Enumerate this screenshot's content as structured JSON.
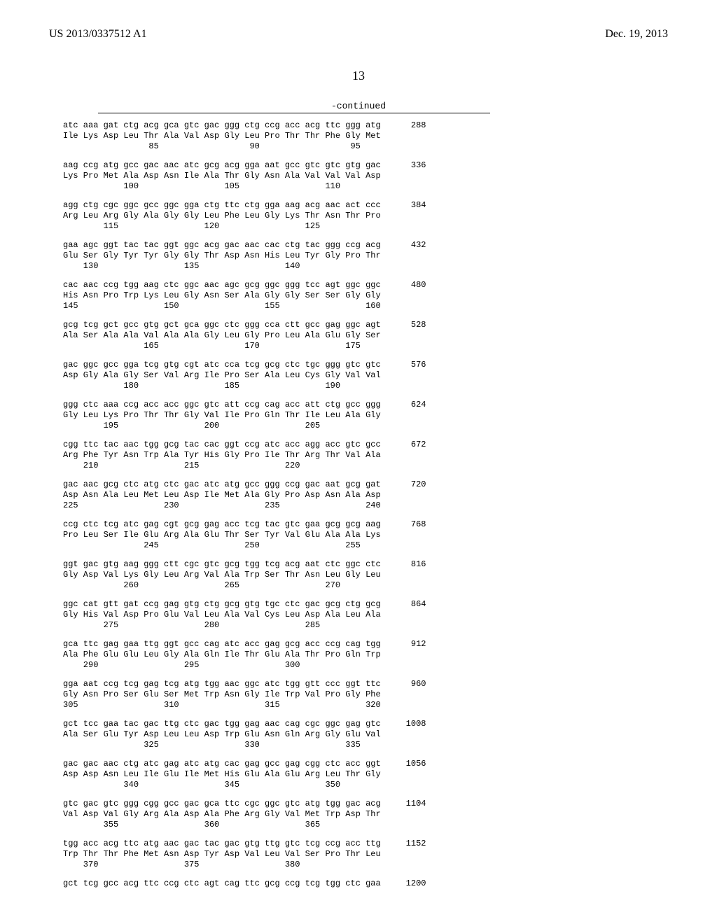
{
  "header": {
    "left": "US 2013/0337512 A1",
    "right": "Dec. 19, 2013"
  },
  "page_number": "13",
  "continued_label": "-continued",
  "entries": [
    {
      "l1": "atc aaa gat ctg acg gca gtc gac ggg ctg ccg acc acg ttc ggg atg      288",
      "l2": "Ile Lys Asp Leu Thr Ala Val Asp Gly Leu Pro Thr Thr Phe Gly Met",
      "l3": "                 85                  90                  95"
    },
    {
      "l1": "aag ccg atg gcc gac aac atc gcg acg gga aat gcc gtc gtc gtg gac      336",
      "l2": "Lys Pro Met Ala Asp Asn Ile Ala Thr Gly Asn Ala Val Val Val Asp",
      "l3": "            100                 105                 110"
    },
    {
      "l1": "agg ctg cgc ggc gcc ggc gga ctg ttc ctg gga aag acg aac act ccc      384",
      "l2": "Arg Leu Arg Gly Ala Gly Gly Leu Phe Leu Gly Lys Thr Asn Thr Pro",
      "l3": "        115                 120                 125"
    },
    {
      "l1": "gaa agc ggt tac tac ggt ggc acg gac aac cac ctg tac ggg ccg acg      432",
      "l2": "Glu Ser Gly Tyr Tyr Gly Gly Thr Asp Asn His Leu Tyr Gly Pro Thr",
      "l3": "    130                 135                 140"
    },
    {
      "l1": "cac aac ccg tgg aag ctc ggc aac agc gcg ggc ggg tcc agt ggc ggc      480",
      "l2": "His Asn Pro Trp Lys Leu Gly Asn Ser Ala Gly Gly Ser Ser Gly Gly",
      "l3": "145                 150                 155                 160"
    },
    {
      "l1": "gcg tcg gct gcc gtg gct gca ggc ctc ggg cca ctt gcc gag ggc agt      528",
      "l2": "Ala Ser Ala Ala Val Ala Ala Gly Leu Gly Pro Leu Ala Glu Gly Ser",
      "l3": "                165                 170                 175"
    },
    {
      "l1": "gac ggc gcc gga tcg gtg cgt atc cca tcg gcg ctc tgc ggg gtc gtc      576",
      "l2": "Asp Gly Ala Gly Ser Val Arg Ile Pro Ser Ala Leu Cys Gly Val Val",
      "l3": "            180                 185                 190"
    },
    {
      "l1": "ggg ctc aaa ccg acc acc ggc gtc att ccg cag acc att ctg gcc ggg      624",
      "l2": "Gly Leu Lys Pro Thr Thr Gly Val Ile Pro Gln Thr Ile Leu Ala Gly",
      "l3": "        195                 200                 205"
    },
    {
      "l1": "cgg ttc tac aac tgg gcg tac cac ggt ccg atc acc agg acc gtc gcc      672",
      "l2": "Arg Phe Tyr Asn Trp Ala Tyr His Gly Pro Ile Thr Arg Thr Val Ala",
      "l3": "    210                 215                 220"
    },
    {
      "l1": "gac aac gcg ctc atg ctc gac atc atg gcc ggg ccg gac aat gcg gat      720",
      "l2": "Asp Asn Ala Leu Met Leu Asp Ile Met Ala Gly Pro Asp Asn Ala Asp",
      "l3": "225                 230                 235                 240"
    },
    {
      "l1": "ccg ctc tcg atc gag cgt gcg gag acc tcg tac gtc gaa gcg gcg aag      768",
      "l2": "Pro Leu Ser Ile Glu Arg Ala Glu Thr Ser Tyr Val Glu Ala Ala Lys",
      "l3": "                245                 250                 255"
    },
    {
      "l1": "ggt gac gtg aag ggg ctt cgc gtc gcg tgg tcg acg aat ctc ggc ctc      816",
      "l2": "Gly Asp Val Lys Gly Leu Arg Val Ala Trp Ser Thr Asn Leu Gly Leu",
      "l3": "            260                 265                 270"
    },
    {
      "l1": "ggc cat gtt gat ccg gag gtg ctg gcg gtg tgc ctc gac gcg ctg gcg      864",
      "l2": "Gly His Val Asp Pro Glu Val Leu Ala Val Cys Leu Asp Ala Leu Ala",
      "l3": "        275                 280                 285"
    },
    {
      "l1": "gca ttc gag gaa ttg ggt gcc cag atc acc gag gcg acc ccg cag tgg      912",
      "l2": "Ala Phe Glu Glu Leu Gly Ala Gln Ile Thr Glu Ala Thr Pro Gln Trp",
      "l3": "    290                 295                 300"
    },
    {
      "l1": "gga aat ccg tcg gag tcg atg tgg aac ggc atc tgg gtt ccc ggt ttc      960",
      "l2": "Gly Asn Pro Ser Glu Ser Met Trp Asn Gly Ile Trp Val Pro Gly Phe",
      "l3": "305                 310                 315                 320"
    },
    {
      "l1": "gct tcc gaa tac gac ttg ctc gac tgg gag aac cag cgc ggc gag gtc     1008",
      "l2": "Ala Ser Glu Tyr Asp Leu Leu Asp Trp Glu Asn Gln Arg Gly Glu Val",
      "l3": "                325                 330                 335"
    },
    {
      "l1": "gac gac aac ctg atc gag atc atg cac gag gcc gag cgg ctc acc ggt     1056",
      "l2": "Asp Asp Asn Leu Ile Glu Ile Met His Glu Ala Glu Arg Leu Thr Gly",
      "l3": "            340                 345                 350"
    },
    {
      "l1": "gtc gac gtc ggg cgg gcc gac gca ttc cgc ggc gtc atg tgg gac acg     1104",
      "l2": "Val Asp Val Gly Arg Ala Asp Ala Phe Arg Gly Val Met Trp Asp Thr",
      "l3": "        355                 360                 365"
    },
    {
      "l1": "tgg acc acg ttc atg aac gac tac gac gtg ttg gtc tcg ccg acc ttg     1152",
      "l2": "Trp Thr Thr Phe Met Asn Asp Tyr Asp Val Leu Val Ser Pro Thr Leu",
      "l3": "    370                 375                 380"
    },
    {
      "l1": "gct tcg gcc acg ttc ccg ctc agt cag ttc gcg ccg tcg tgg ctc gaa     1200",
      "l2": "",
      "l3": ""
    }
  ]
}
